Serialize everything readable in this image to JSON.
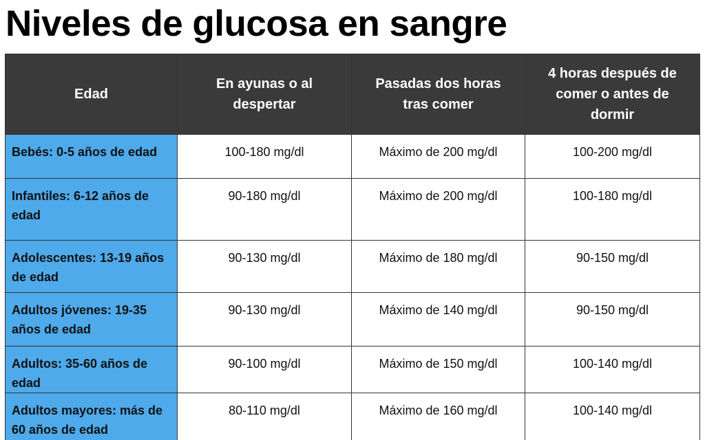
{
  "header": {
    "title": "Niveles de glucosa en sangre"
  },
  "table": {
    "columns": [
      "Edad",
      "En ayunas o al despertar",
      "Pasadas dos horas tras comer",
      "4 horas después de comer o antes de dormir"
    ],
    "rows": [
      [
        "Bebés: 0-5 años de edad",
        "100-180 mg/dl",
        "Máximo de 200 mg/dl",
        "100-200 mg/dl"
      ],
      [
        "Infantiles: 6-12 años de edad",
        "90-180 mg/dl",
        "Máximo de 200 mg/dl",
        "100-180 mg/dl"
      ],
      [
        "Adolescentes: 13-19 años de edad",
        "90-130 mg/dl",
        "Máximo de 180 mg/dl",
        "90-150 mg/dl"
      ],
      [
        "Adultos jóvenes: 19-35 años de edad",
        "90-130 mg/dl",
        "Máximo de 140 mg/dl",
        "90-150 mg/dl"
      ],
      [
        "Adultos: 35-60 años de edad",
        "90-100 mg/dl",
        "Máximo de 150 mg/dl",
        "100-140 mg/dl"
      ],
      [
        "Adultos mayores: más de 60 años de edad",
        "80-110 mg/dl",
        "Máximo de 160 mg/dl",
        "100-140 mg/dl"
      ]
    ]
  }
}
